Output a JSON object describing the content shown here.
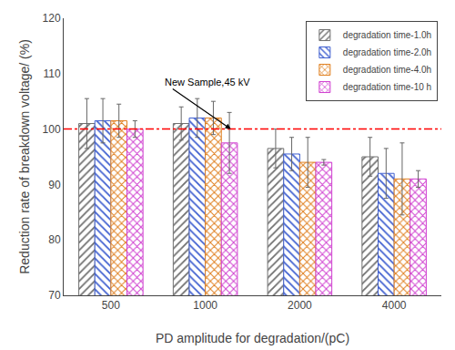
{
  "chart_data": {
    "type": "bar",
    "xlabel": "PD amplitude for degradation/(pC)",
    "ylabel": "Reduction rate of breakdown voltage/ (%)",
    "categories": [
      "500",
      "1000",
      "2000",
      "4000"
    ],
    "series": [
      {
        "name": "degradation time-1.0h",
        "color": "#707070",
        "values": [
          101.0,
          101.0,
          96.5,
          95.0
        ],
        "errors": [
          4.5,
          3.0,
          3.5,
          3.5
        ]
      },
      {
        "name": "degradation time-2.0h",
        "color": "#4060d0",
        "values": [
          101.5,
          102.0,
          95.5,
          92.0
        ],
        "errors": [
          4.0,
          3.5,
          3.0,
          4.5
        ]
      },
      {
        "name": "degradation time-4.0h",
        "color": "#e08020",
        "values": [
          101.5,
          102.0,
          94.0,
          91.0
        ],
        "errors": [
          3.0,
          3.0,
          4.5,
          6.5
        ]
      },
      {
        "name": "degradation time-10 h",
        "color": "#d040d0",
        "values": [
          100.0,
          97.5,
          94.0,
          91.0
        ],
        "errors": [
          1.5,
          5.5,
          0.5,
          1.5
        ]
      }
    ],
    "reference_line": {
      "y": 100,
      "color": "#ff0000"
    },
    "annotations": [
      {
        "text": "New Sample,45 kV",
        "x": 1.27,
        "y": 100.0,
        "text_x": 0.55,
        "text_y": 108.5
      }
    ],
    "ylim": [
      70,
      120
    ],
    "yticks": [
      70,
      80,
      90,
      100,
      110,
      120
    ],
    "grid": false,
    "legend": "upper right"
  }
}
